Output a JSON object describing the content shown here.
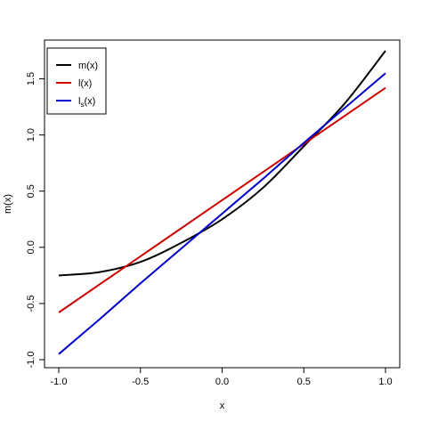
{
  "chart_data": {
    "type": "line",
    "title": "",
    "xlabel": "x",
    "ylabel": "m(x)",
    "xlim": [
      -1.0,
      1.0
    ],
    "ylim": [
      -1.0,
      1.75
    ],
    "xticks": [
      -1.0,
      -0.5,
      0.0,
      0.5,
      1.0
    ],
    "xtick_labels": [
      "-1.0",
      "-0.5",
      "0.0",
      "0.5",
      "1.0"
    ],
    "yticks": [
      -1.0,
      -0.5,
      0.0,
      0.5,
      1.0,
      1.5
    ],
    "ytick_labels": [
      "-1.0",
      "-0.5",
      "0.0",
      "0.5",
      "1.0",
      "1.5"
    ],
    "grid": false,
    "legend_position": "top-left",
    "x": [
      -1.0,
      -0.75,
      -0.5,
      -0.25,
      0.0,
      0.25,
      0.5,
      0.75,
      1.0
    ],
    "series": [
      {
        "name": "m(x)",
        "color": "#000000",
        "values": [
          -0.25,
          -0.22,
          -0.13,
          0.04,
          0.25,
          0.53,
          0.9,
          1.28,
          1.75
        ]
      },
      {
        "name": "l(x)",
        "color": "#cc0000",
        "values": [
          -0.58,
          -0.33,
          -0.08,
          0.17,
          0.42,
          0.67,
          0.92,
          1.17,
          1.42
        ]
      },
      {
        "name": "ls(x)",
        "label_main": "l",
        "label_sub": "s",
        "label_tail": "(x)",
        "color": "#0000cc",
        "values": [
          -0.95,
          -0.64,
          -0.32,
          -0.01,
          0.3,
          0.61,
          0.93,
          1.24,
          1.55
        ]
      }
    ]
  }
}
